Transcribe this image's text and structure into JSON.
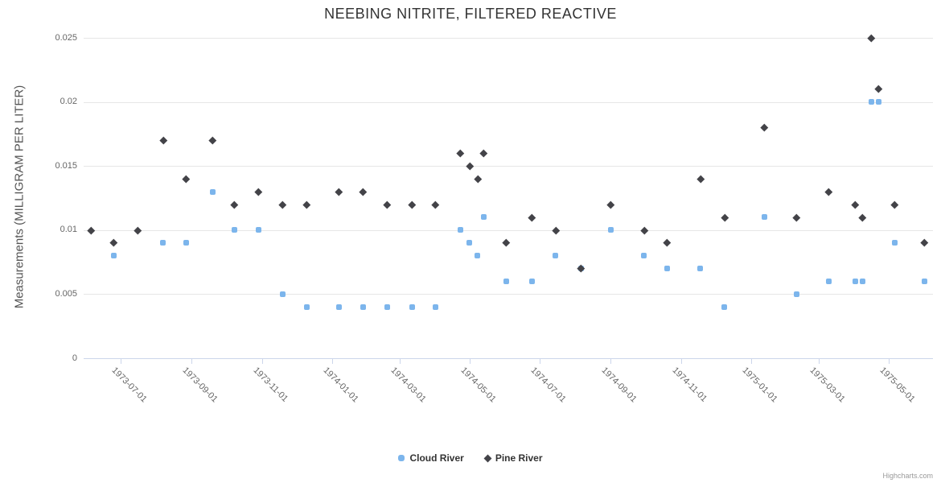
{
  "chart_data": {
    "type": "scatter",
    "title": "NEEBING NITRITE, FILTERED REACTIVE",
    "ylabel": "Measurements (MILLIGRAM PER LITER)",
    "xlabel": "",
    "ylim": [
      0,
      0.025
    ],
    "grid": "horizontal",
    "legend_position": "bottom-center",
    "yticks": [
      {
        "value": 0.025,
        "label": "0.025"
      },
      {
        "value": 0.02,
        "label": "0.02"
      },
      {
        "value": 0.015,
        "label": "0.015"
      },
      {
        "value": 0.01,
        "label": "0.01"
      },
      {
        "value": 0.005,
        "label": "0.005"
      },
      {
        "value": 0,
        "label": "0"
      }
    ],
    "xticks": [
      "1973-07-01",
      "1973-09-01",
      "1973-11-01",
      "1974-01-01",
      "1974-03-01",
      "1974-05-01",
      "1974-07-01",
      "1974-09-01",
      "1974-11-01",
      "1975-01-01",
      "1975-03-01",
      "1975-05-01"
    ],
    "x_range": [
      "1973-05-25",
      "1975-06-09"
    ],
    "series": [
      {
        "name": "Cloud River",
        "color": "#7cb5ec",
        "marker": "square",
        "points": [
          {
            "x": "1973-06-25",
            "y": 0.008
          },
          {
            "x": "1973-08-07",
            "y": 0.009
          },
          {
            "x": "1973-08-27",
            "y": 0.009
          },
          {
            "x": "1973-09-19",
            "y": 0.013
          },
          {
            "x": "1973-10-08",
            "y": 0.01
          },
          {
            "x": "1973-10-29",
            "y": 0.01
          },
          {
            "x": "1973-11-19",
            "y": 0.005
          },
          {
            "x": "1973-12-10",
            "y": 0.004
          },
          {
            "x": "1974-01-07",
            "y": 0.004
          },
          {
            "x": "1974-01-28",
            "y": 0.004
          },
          {
            "x": "1974-02-18",
            "y": 0.004
          },
          {
            "x": "1974-03-12",
            "y": 0.004
          },
          {
            "x": "1974-04-01",
            "y": 0.004
          },
          {
            "x": "1974-04-23",
            "y": 0.01
          },
          {
            "x": "1974-05-01",
            "y": 0.009
          },
          {
            "x": "1974-05-08",
            "y": 0.008
          },
          {
            "x": "1974-05-13",
            "y": 0.011
          },
          {
            "x": "1974-06-02",
            "y": 0.006
          },
          {
            "x": "1974-06-24",
            "y": 0.006
          },
          {
            "x": "1974-07-15",
            "y": 0.008
          },
          {
            "x": "1974-08-06",
            "y": 0.007
          },
          {
            "x": "1974-09-01",
            "y": 0.01
          },
          {
            "x": "1974-09-30",
            "y": 0.008
          },
          {
            "x": "1974-10-20",
            "y": 0.007
          },
          {
            "x": "1974-11-18",
            "y": 0.007
          },
          {
            "x": "1974-12-09",
            "y": 0.004
          },
          {
            "x": "1975-01-13",
            "y": 0.011
          },
          {
            "x": "1975-02-10",
            "y": 0.005
          },
          {
            "x": "1975-03-10",
            "y": 0.006
          },
          {
            "x": "1975-04-02",
            "y": 0.006
          },
          {
            "x": "1975-04-08",
            "y": 0.006
          },
          {
            "x": "1975-04-16",
            "y": 0.02
          },
          {
            "x": "1975-04-22",
            "y": 0.02
          },
          {
            "x": "1975-05-06",
            "y": 0.009
          },
          {
            "x": "1975-06-01",
            "y": 0.006
          }
        ]
      },
      {
        "name": "Pine River",
        "color": "#434348",
        "marker": "diamond",
        "points": [
          {
            "x": "1973-06-05",
            "y": 0.01
          },
          {
            "x": "1973-06-25",
            "y": 0.009
          },
          {
            "x": "1973-07-16",
            "y": 0.01
          },
          {
            "x": "1973-08-07",
            "y": 0.017
          },
          {
            "x": "1973-08-27",
            "y": 0.014
          },
          {
            "x": "1973-09-19",
            "y": 0.017
          },
          {
            "x": "1973-10-08",
            "y": 0.012
          },
          {
            "x": "1973-10-29",
            "y": 0.013
          },
          {
            "x": "1973-11-19",
            "y": 0.012
          },
          {
            "x": "1973-12-10",
            "y": 0.012
          },
          {
            "x": "1974-01-07",
            "y": 0.013
          },
          {
            "x": "1974-01-28",
            "y": 0.013
          },
          {
            "x": "1974-02-18",
            "y": 0.012
          },
          {
            "x": "1974-03-12",
            "y": 0.012
          },
          {
            "x": "1974-04-01",
            "y": 0.012
          },
          {
            "x": "1974-04-23",
            "y": 0.016
          },
          {
            "x": "1974-05-01",
            "y": 0.015
          },
          {
            "x": "1974-05-08",
            "y": 0.014
          },
          {
            "x": "1974-05-13",
            "y": 0.016
          },
          {
            "x": "1974-06-02",
            "y": 0.009
          },
          {
            "x": "1974-06-24",
            "y": 0.011
          },
          {
            "x": "1974-07-15",
            "y": 0.01
          },
          {
            "x": "1974-08-06",
            "y": 0.007
          },
          {
            "x": "1974-09-01",
            "y": 0.012
          },
          {
            "x": "1974-09-30",
            "y": 0.01
          },
          {
            "x": "1974-10-20",
            "y": 0.009
          },
          {
            "x": "1974-11-18",
            "y": 0.014
          },
          {
            "x": "1974-12-09",
            "y": 0.011
          },
          {
            "x": "1975-01-13",
            "y": 0.018
          },
          {
            "x": "1975-02-10",
            "y": 0.011
          },
          {
            "x": "1975-03-10",
            "y": 0.013
          },
          {
            "x": "1975-04-02",
            "y": 0.012
          },
          {
            "x": "1975-04-08",
            "y": 0.011
          },
          {
            "x": "1975-04-16",
            "y": 0.025
          },
          {
            "x": "1975-04-22",
            "y": 0.021
          },
          {
            "x": "1975-05-06",
            "y": 0.012
          },
          {
            "x": "1975-06-01",
            "y": 0.009
          }
        ]
      }
    ]
  },
  "credits": {
    "label": "Highcharts.com"
  },
  "colors": {
    "title": "#333333",
    "axis_label": "#666666",
    "grid": "#e6e6e6",
    "axis_line": "#ccd6eb",
    "series_cloud": "#7cb5ec",
    "series_pine": "#434348"
  }
}
